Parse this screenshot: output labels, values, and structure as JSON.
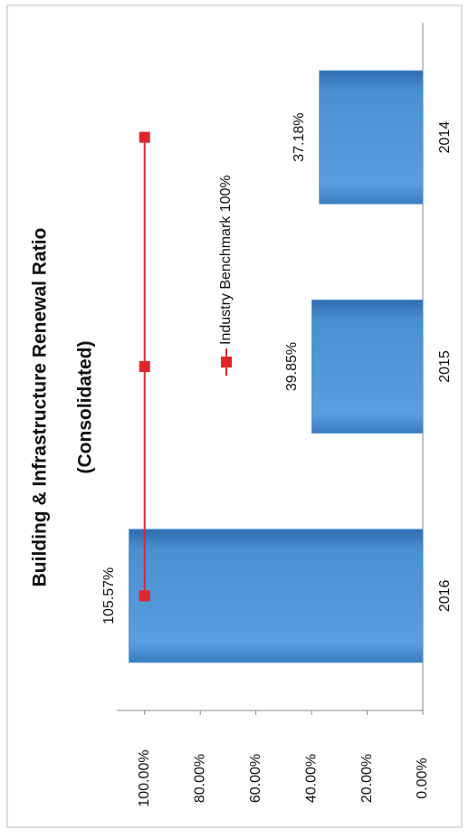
{
  "chart_data": {
    "type": "bar",
    "title": "Building & Infrastructure Renewal Ratio",
    "subtitle": "(Consolidated)",
    "categories": [
      "2016",
      "2015",
      "2014"
    ],
    "series": [
      {
        "type": "bar",
        "color": "#4a8fd0",
        "values": [
          105.57,
          39.85,
          37.18
        ],
        "value_labels": [
          "105.57%",
          "39.85%",
          "37.18%"
        ]
      },
      {
        "type": "line",
        "name": "Industry Benchmark 100%",
        "color": "#e0262b",
        "values": [
          100,
          100,
          100
        ]
      }
    ],
    "ylim": [
      0,
      110
    ],
    "yticks": [
      {
        "value": 0,
        "label": "0.00%"
      },
      {
        "value": 20,
        "label": "20.00%"
      },
      {
        "value": 40,
        "label": "40.00%"
      },
      {
        "value": 60,
        "label": "60.00%"
      },
      {
        "value": 80,
        "label": "80.00%"
      },
      {
        "value": 100,
        "label": "100.00%"
      }
    ]
  }
}
